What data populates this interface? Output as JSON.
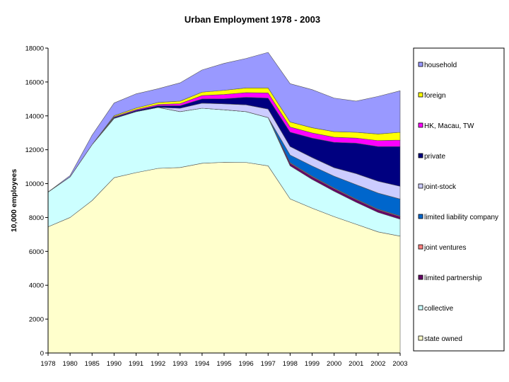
{
  "chart_data": {
    "type": "area",
    "stacked": true,
    "title": "Urban Employment 1978 - 2003",
    "xlabel": "",
    "ylabel": "10,000 employees",
    "ylim": [
      0,
      18000
    ],
    "yticks": [
      0,
      2000,
      4000,
      6000,
      8000,
      10000,
      12000,
      14000,
      16000,
      18000
    ],
    "grid": false,
    "legend_position": "right",
    "categories": [
      "1978",
      "1980",
      "1985",
      "1990",
      "1991",
      "1992",
      "1993",
      "1994",
      "1995",
      "1996",
      "1997",
      "1998",
      "1999",
      "2000",
      "2001",
      "2002",
      "2003"
    ],
    "series": [
      {
        "name": "state owned",
        "color": "#FFFFCC",
        "values": [
          7450,
          8000,
          9000,
          10350,
          10650,
          10900,
          10950,
          11200,
          11260,
          11250,
          11050,
          9100,
          8550,
          8050,
          7600,
          7150,
          6900
        ]
      },
      {
        "name": "collective",
        "color": "#CCFFFF",
        "values": [
          2050,
          2400,
          3300,
          3500,
          3600,
          3600,
          3300,
          3250,
          3100,
          3000,
          2850,
          1950,
          1700,
          1500,
          1300,
          1150,
          1000
        ]
      },
      {
        "name": "limited partnership",
        "color": "#660066",
        "values": [
          0,
          0,
          0,
          0,
          0,
          0,
          0,
          0,
          0,
          0,
          0,
          150,
          150,
          150,
          150,
          150,
          150
        ]
      },
      {
        "name": "joint ventures",
        "color": "#FF8080",
        "values": [
          0,
          0,
          0,
          0,
          0,
          0,
          0,
          0,
          0,
          0,
          0,
          40,
          40,
          40,
          40,
          40,
          40
        ]
      },
      {
        "name": "limited liability company",
        "color": "#0066CC",
        "values": [
          0,
          0,
          0,
          0,
          0,
          0,
          0,
          0,
          0,
          0,
          0,
          450,
          600,
          700,
          850,
          950,
          1000
        ]
      },
      {
        "name": "joint-stock",
        "color": "#CCCCFF",
        "values": [
          0,
          0,
          0,
          0,
          0,
          0,
          200,
          300,
          350,
          400,
          500,
          500,
          500,
          500,
          650,
          700,
          750
        ]
      },
      {
        "name": "private",
        "color": "#000080",
        "values": [
          0,
          0,
          0,
          60,
          70,
          100,
          150,
          250,
          300,
          450,
          650,
          850,
          1150,
          1500,
          1800,
          2050,
          2350
        ]
      },
      {
        "name": "HK, Macau, TW",
        "color": "#FF00FF",
        "values": [
          0,
          0,
          0,
          40,
          50,
          70,
          120,
          200,
          250,
          270,
          300,
          300,
          300,
          300,
          300,
          350,
          380
        ]
      },
      {
        "name": "foreign",
        "color": "#FFFF00",
        "values": [
          0,
          0,
          0,
          60,
          90,
          120,
          150,
          200,
          250,
          280,
          300,
          300,
          310,
          330,
          340,
          390,
          460
        ]
      },
      {
        "name": "household",
        "color": "#9999FF",
        "values": [
          0,
          80,
          560,
          750,
          840,
          810,
          1080,
          1310,
          1590,
          1740,
          2100,
          2260,
          2250,
          1980,
          1840,
          2220,
          2450
        ]
      }
    ]
  }
}
